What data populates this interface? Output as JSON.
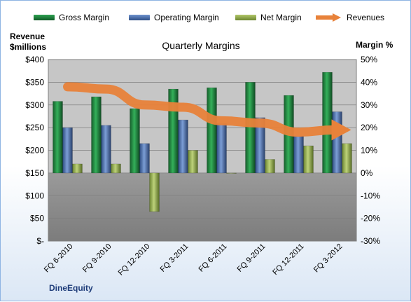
{
  "chart_data": {
    "type": "bar",
    "title": "Quarterly Margins",
    "categories": [
      "FQ 6-2010",
      "FQ 9-2010",
      "FQ 12-2010",
      "FQ 3-2011",
      "FQ 6-2011",
      "FQ 9-2011",
      "FQ 12-2011",
      "FQ 3-2012"
    ],
    "series": [
      {
        "name": "Gross Margin",
        "axis": "left",
        "values": [
          308,
          318,
          292,
          335,
          338,
          350,
          321,
          372
        ]
      },
      {
        "name": "Operating Margin",
        "axis": "left",
        "values": [
          250,
          255,
          215,
          267,
          259,
          272,
          231,
          285
        ]
      },
      {
        "name": "Net Margin",
        "axis": "right",
        "values": [
          4,
          4,
          -17,
          10,
          0,
          6,
          12,
          13
        ]
      },
      {
        "name": "Revenues",
        "axis": "right",
        "type": "line",
        "values": [
          38,
          37,
          30,
          29,
          23,
          22,
          18,
          19
        ]
      }
    ],
    "left_axis": {
      "title": "Revenue $millions",
      "range": [
        0,
        400
      ],
      "ticks": [
        "$-",
        "$50",
        "$100",
        "$150",
        "$200",
        "$250",
        "$300",
        "$350",
        "$400"
      ]
    },
    "right_axis": {
      "title": "Margin %",
      "range": [
        -30,
        50
      ],
      "ticks": [
        "-30%",
        "-20%",
        "-10%",
        "0%",
        "10%",
        "20%",
        "30%",
        "40%",
        "50%"
      ]
    },
    "legend_position": "top",
    "grid": true
  },
  "legend": {
    "gross": "Gross Margin",
    "operating": "Operating Margin",
    "net": "Net Margin",
    "revenues": "Revenues"
  },
  "axis_titles": {
    "left_line1": "Revenue",
    "left_line2": "$millions",
    "right": "Margin %"
  },
  "title": "Quarterly Margins",
  "company": "DineEquity",
  "colors": {
    "gross": "#1e7a3c",
    "operating": "#4a6ea9",
    "net": "#8fa84a",
    "revenues": "#e8823a",
    "plot_upper": "#c6c6c6",
    "plot_lower": "#8c8c8c"
  }
}
